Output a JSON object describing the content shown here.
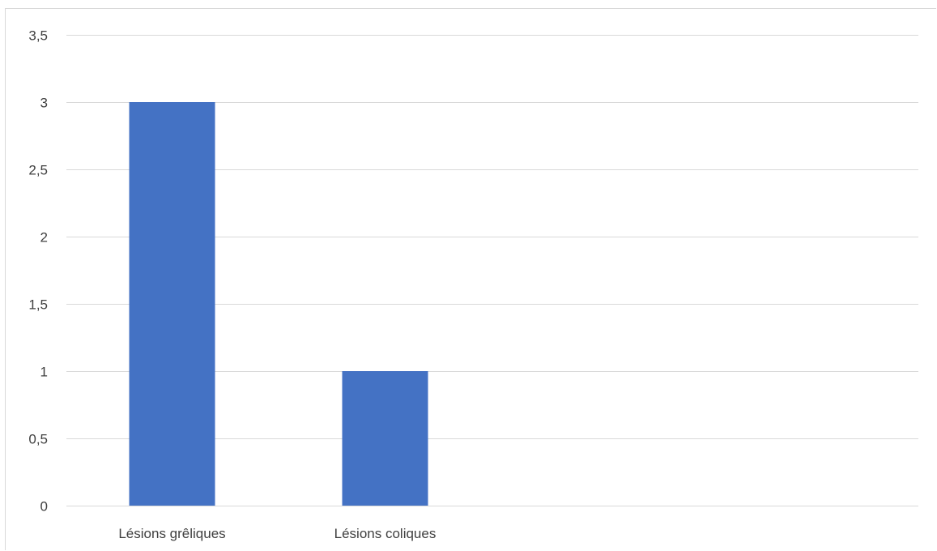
{
  "chart_data": {
    "type": "bar",
    "categories": [
      "Lésions grêliques",
      "Lésions coliques"
    ],
    "values": [
      3,
      1
    ],
    "title": "",
    "xlabel": "",
    "ylabel": "",
    "ylim": [
      0,
      3.5
    ],
    "yticks": [
      0,
      0.5,
      1,
      1.5,
      2,
      2.5,
      3,
      3.5
    ],
    "ytick_labels": [
      "0",
      "0,5",
      "1",
      "1,5",
      "2",
      "2,5",
      "3",
      "3,5"
    ],
    "grid": true,
    "legend": "none",
    "colors": {
      "bar": "#4472c4",
      "grid": "#d9d9d9",
      "text": "#404040"
    }
  }
}
